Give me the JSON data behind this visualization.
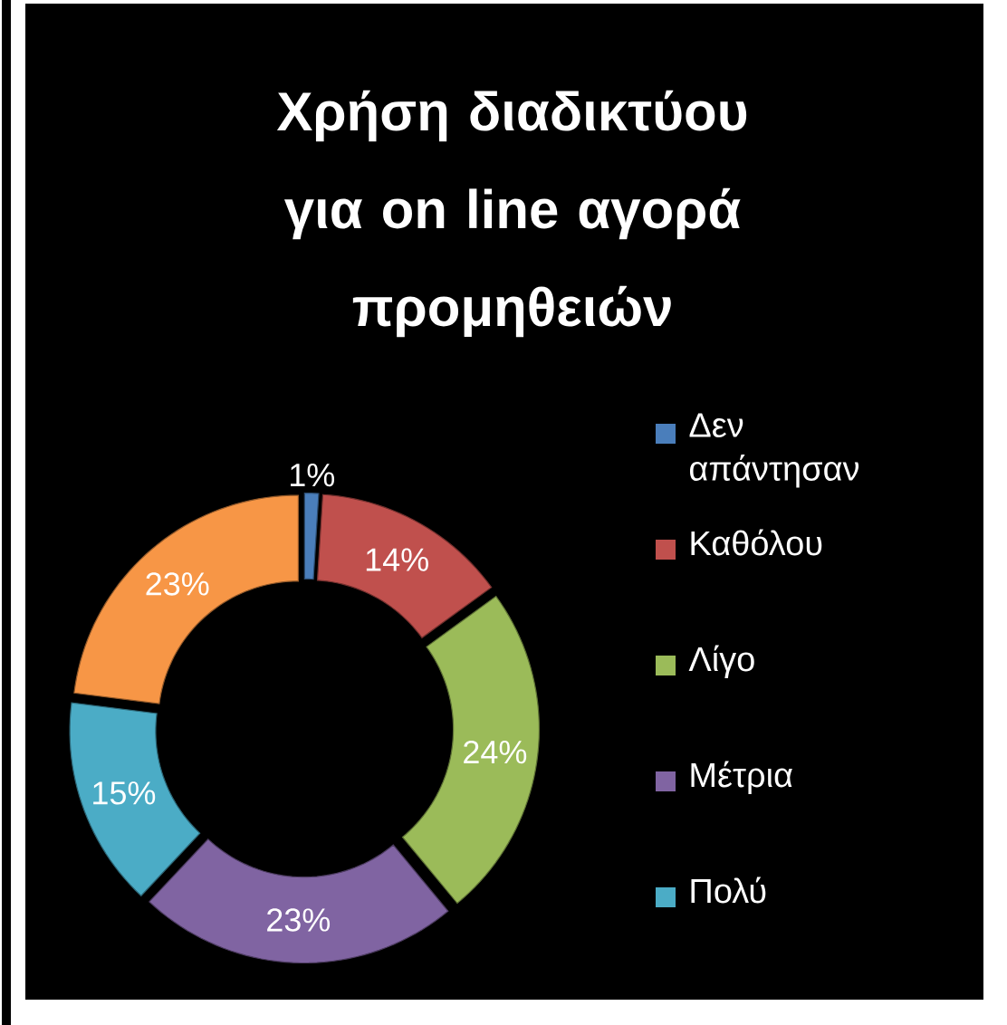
{
  "chart_data": {
    "type": "donut",
    "title": "Χρήση διαδικτύου για on line αγορά προμηθειών",
    "categories": [
      "Δεν απάντησαν",
      "Καθόλου",
      "Λίγο",
      "Μέτρια",
      "Πολύ",
      null
    ],
    "values": [
      1,
      14,
      24,
      23,
      15,
      23
    ],
    "colors": [
      "#4a7ebb",
      "#c0504d",
      "#9bbb59",
      "#8064a2",
      "#4bacc6",
      "#f79646"
    ],
    "value_labels": [
      "1%",
      "14%",
      "24%",
      "23%",
      "15%",
      "23%"
    ],
    "legend": "right"
  }
}
